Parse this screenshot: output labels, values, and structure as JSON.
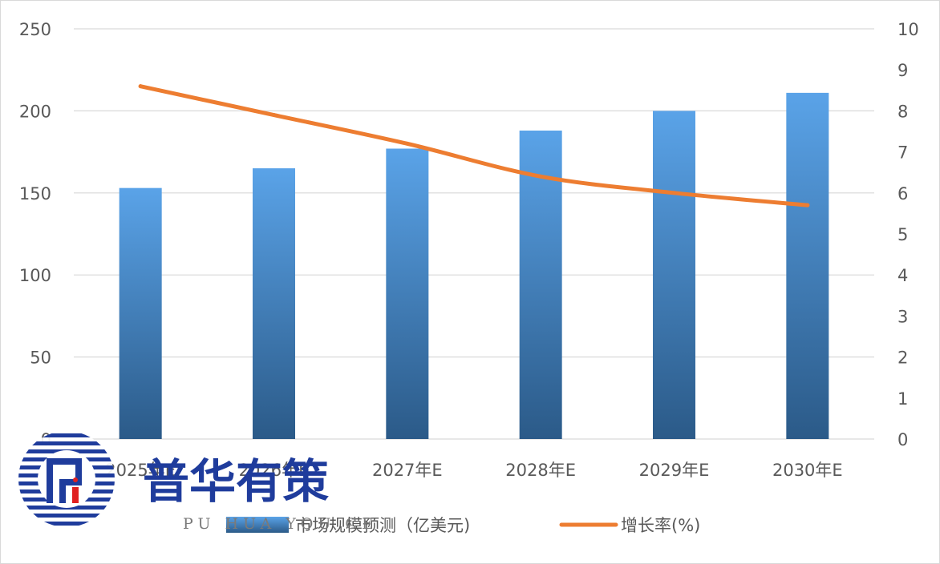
{
  "chart_data": {
    "type": "bar",
    "categories": [
      "2025年E",
      "2026年E",
      "2027年E",
      "2028年E",
      "2029年E",
      "2030年E"
    ],
    "series": [
      {
        "name": "市场规模预测（亿美元)",
        "type": "bar",
        "axis": "left",
        "values": [
          153,
          165,
          177,
          188,
          200,
          211
        ],
        "color": "#4a90d9"
      },
      {
        "name": "增长率(%)",
        "type": "line",
        "axis": "right",
        "values": [
          8.6,
          7.9,
          7.2,
          6.4,
          6.0,
          5.7
        ],
        "color": "#ed7d31"
      }
    ],
    "y_left": {
      "ylim": [
        0,
        250
      ],
      "ticks": [
        "0",
        "50",
        "100",
        "150",
        "200",
        "250"
      ]
    },
    "y_right": {
      "ylim": [
        0,
        10
      ],
      "ticks": [
        "0",
        "1",
        "2",
        "3",
        "4",
        "5",
        "6",
        "7",
        "8",
        "9",
        "10"
      ]
    },
    "grid": true,
    "legend": "bottom"
  },
  "watermark": {
    "logo_text": "普华有策",
    "logo_subtext": "PU HUA YOU CE",
    "logo_color": "#1f3c9c",
    "logo_accent": "#e02020"
  }
}
